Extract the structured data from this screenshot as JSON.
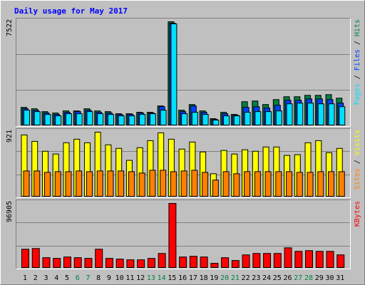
{
  "title": "Daily usage for May 2017",
  "legend_separator": "/",
  "chart_data": [
    {
      "type": "bar",
      "ylim": [
        0,
        7522
      ],
      "yticks": [
        7522
      ],
      "grid": true,
      "series": [
        {
          "name": "Hits",
          "color": "#008040",
          "values": [
            1288,
            1185,
            979,
            876,
            1030,
            1030,
            1185,
            1030,
            979,
            824,
            824,
            927,
            927,
            1391,
            7522,
            1082,
            1494,
            1030,
            464,
            927,
            773,
            1700,
            1751,
            1494,
            1854,
            2060,
            2060,
            2163,
            2163,
            2215,
            1957
          ]
        },
        {
          "name": "Files",
          "color": "#0040ff",
          "values": [
            1185,
            1082,
            876,
            773,
            927,
            979,
            1082,
            927,
            876,
            773,
            773,
            876,
            876,
            1339,
            7418,
            979,
            1391,
            927,
            412,
            824,
            721,
            1288,
            1339,
            1236,
            1442,
            1803,
            1803,
            1906,
            1906,
            1854,
            1597
          ]
        },
        {
          "name": "Pages",
          "color": "#00e0ff",
          "values": [
            1082,
            979,
            773,
            670,
            824,
            824,
            979,
            824,
            773,
            670,
            670,
            773,
            824,
            1082,
            7367,
            824,
            927,
            773,
            361,
            670,
            670,
            927,
            979,
            979,
            1030,
            1545,
            1597,
            1597,
            1545,
            1545,
            1339
          ]
        }
      ]
    },
    {
      "type": "bar",
      "ylim": [
        0,
        921
      ],
      "yticks": [
        921
      ],
      "grid": true,
      "series": [
        {
          "name": "Visits",
          "color": "#ffff00",
          "values": [
            881,
            789,
            647,
            607,
            769,
            820,
            769,
            921,
            739,
            688,
            516,
            698,
            799,
            911,
            820,
            678,
            779,
            637,
            324,
            658,
            607,
            668,
            647,
            708,
            708,
            587,
            597,
            769,
            799,
            627,
            688
          ]
        },
        {
          "name": "Sites",
          "color": "#ff8000",
          "values": [
            364,
            364,
            344,
            354,
            354,
            364,
            354,
            364,
            364,
            364,
            354,
            334,
            374,
            374,
            354,
            364,
            374,
            344,
            233,
            354,
            324,
            354,
            354,
            354,
            354,
            354,
            344,
            344,
            354,
            354,
            354
          ]
        }
      ]
    },
    {
      "type": "bar",
      "ylim": [
        0,
        96905
      ],
      "yticks": [
        96905
      ],
      "grid": true,
      "categories": [
        "1",
        "2",
        "3",
        "4",
        "5",
        "6",
        "7",
        "8",
        "9",
        "10",
        "11",
        "12",
        "13",
        "14",
        "15",
        "16",
        "17",
        "18",
        "19",
        "20",
        "21",
        "22",
        "23",
        "24",
        "25",
        "26",
        "27",
        "28",
        "29",
        "30",
        "31"
      ],
      "category_colors": [
        "#000000",
        "#000000",
        "#000000",
        "#000000",
        "#000000",
        "#008040",
        "#008040",
        "#000000",
        "#000000",
        "#000000",
        "#000000",
        "#000000",
        "#008040",
        "#008040",
        "#000000",
        "#000000",
        "#000000",
        "#000000",
        "#000000",
        "#008040",
        "#008040",
        "#000000",
        "#000000",
        "#000000",
        "#000000",
        "#000000",
        "#008040",
        "#008040",
        "#000000",
        "#000000",
        "#000000"
      ],
      "series": [
        {
          "name": "KBytes",
          "color": "#ff0000",
          "values": [
            27690,
            28755,
            14910,
            13845,
            15975,
            14910,
            13845,
            27690,
            13845,
            12780,
            11715,
            11715,
            13845,
            21300,
            96905,
            15975,
            17040,
            15975,
            6390,
            14910,
            10650,
            19170,
            21300,
            21300,
            21300,
            29820,
            24495,
            25560,
            24495,
            24495,
            19170
          ]
        }
      ]
    }
  ]
}
